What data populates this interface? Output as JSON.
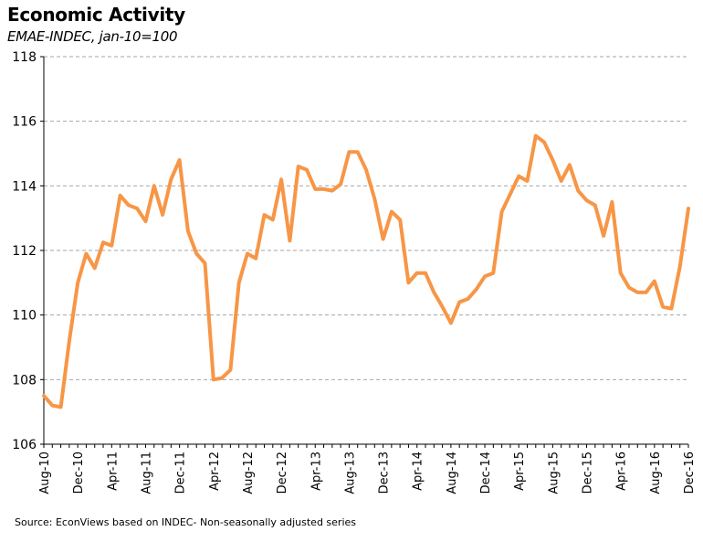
{
  "chart_data": {
    "type": "line",
    "title": "Economic Activity",
    "subtitle": "EMAE-INDEC, jan-10=100",
    "source": "Source: EconViews based on INDEC- Non-seasonally adjusted series",
    "xlabel": "",
    "ylabel": "",
    "ylim": [
      106,
      118
    ],
    "yticks": [
      "106",
      "108",
      "110",
      "112",
      "114",
      "116",
      "118"
    ],
    "grid": true,
    "line_color": "#F79646",
    "x": [
      "Aug-10",
      "Sep-10",
      "Oct-10",
      "Nov-10",
      "Dec-10",
      "Jan-11",
      "Feb-11",
      "Mar-11",
      "Apr-11",
      "May-11",
      "Jun-11",
      "Jul-11",
      "Aug-11",
      "Sep-11",
      "Oct-11",
      "Nov-11",
      "Dec-11",
      "Jan-12",
      "Feb-12",
      "Mar-12",
      "Apr-12",
      "May-12",
      "Jun-12",
      "Jul-12",
      "Aug-12",
      "Sep-12",
      "Oct-12",
      "Nov-12",
      "Dec-12",
      "Jan-13",
      "Feb-13",
      "Mar-13",
      "Apr-13",
      "May-13",
      "Jun-13",
      "Jul-13",
      "Aug-13",
      "Sep-13",
      "Oct-13",
      "Nov-13",
      "Dec-13",
      "Jan-14",
      "Feb-14",
      "Mar-14",
      "Apr-14",
      "May-14",
      "Jun-14",
      "Jul-14",
      "Aug-14",
      "Sep-14",
      "Oct-14",
      "Nov-14",
      "Dec-14",
      "Jan-15",
      "Feb-15",
      "Mar-15",
      "Apr-15",
      "May-15",
      "Jun-15",
      "Jul-15",
      "Aug-15",
      "Sep-15",
      "Oct-15",
      "Nov-15",
      "Dec-15",
      "Jan-16",
      "Feb-16",
      "Mar-16",
      "Apr-16",
      "May-16",
      "Jun-16",
      "Jul-16",
      "Aug-16",
      "Sep-16",
      "Oct-16",
      "Nov-16",
      "Dec-16"
    ],
    "xtick_labels": [
      "Aug-10",
      "Dec-10",
      "Apr-11",
      "Aug-11",
      "Dec-11",
      "Apr-12",
      "Aug-12",
      "Dec-12",
      "Apr-13",
      "Aug-13",
      "Dec-13",
      "Apr-14",
      "Aug-14",
      "Dec-14",
      "Apr-15",
      "Aug-15",
      "Dec-15",
      "Apr-16",
      "Aug-16",
      "Dec-16"
    ],
    "series": [
      {
        "values": [
          107.5,
          107.2,
          107.15,
          109.2,
          111.0,
          111.9,
          111.45,
          112.25,
          112.15,
          113.7,
          113.4,
          113.3,
          112.9,
          114.0,
          113.1,
          114.2,
          114.8,
          112.6,
          111.9,
          111.6,
          108.0,
          108.05,
          108.3,
          111.0,
          111.9,
          111.75,
          113.1,
          112.95,
          114.2,
          112.3,
          114.6,
          114.5,
          113.9,
          113.9,
          113.85,
          114.05,
          115.05,
          115.05,
          114.5,
          113.6,
          112.35,
          113.2,
          112.95,
          111.0,
          111.3,
          111.3,
          110.7,
          110.25,
          109.75,
          110.4,
          110.5,
          110.8,
          111.2,
          111.3,
          113.2,
          113.75,
          114.3,
          114.15,
          115.55,
          115.35,
          114.8,
          114.15,
          114.65,
          113.85,
          113.55,
          113.4,
          112.45,
          113.5,
          111.3,
          110.85,
          110.7,
          110.7,
          111.05,
          110.25,
          110.2,
          111.5,
          113.3
        ]
      }
    ]
  }
}
